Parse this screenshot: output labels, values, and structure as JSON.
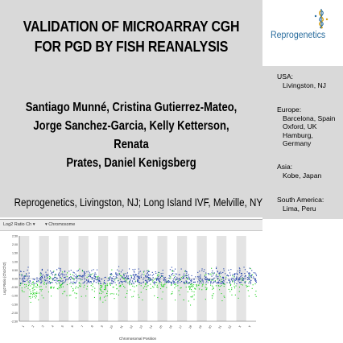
{
  "title_lines": [
    "VALIDATION OF MICROARRAY CGH",
    "FOR PGD BY FISH REANALYSIS"
  ],
  "author_lines": [
    "Santiago Munné, Cristina Gutierrez-Mateo,",
    "Jorge Sanchez-Garcia, Kelly Ketterson, Renata",
    "Prates, Daniel Kenigsberg"
  ],
  "affiliation": "Reprogenetics, Livingston, NJ; Long Island IVF, Melville, NY",
  "logo": {
    "text": "Reprogenetics",
    "icon": "logo-icon",
    "color": "#2a6d9e"
  },
  "locations": [
    {
      "region": "USA:",
      "cities": [
        "Livingston, NJ"
      ]
    },
    {
      "region": "Europe:",
      "cities": [
        "Barcelona, Spain",
        "Oxford, UK",
        "Hamburg, Germany"
      ]
    },
    {
      "region": "Asia:",
      "cities": [
        "Kobe, Japan"
      ]
    },
    {
      "region": "South America:",
      "cities": [
        "Lima, Peru"
      ]
    }
  ],
  "toolbar": {
    "ratio_label": "Log2 Ratio Ch",
    "chromosome_label": "Chromosome"
  },
  "chart_data": {
    "type": "scatter",
    "xlabel": "Chromosomal Position",
    "ylabel": "Log2 Ratio (Ch1/Ch2)",
    "ylim": [
      -2.5,
      2.5
    ],
    "yticks": [
      "2.50",
      "2.00",
      "1.50",
      "1.00",
      "0.50",
      "0.00",
      "-0.50",
      "-1.00",
      "-1.50",
      "-2.00",
      "-2.50"
    ],
    "chromosomes": [
      "1",
      "2",
      "3",
      "4",
      "5",
      "6",
      "7",
      "8",
      "9",
      "10",
      "11",
      "12",
      "13",
      "14",
      "15",
      "16",
      "17",
      "18",
      "19",
      "20",
      "21",
      "22",
      "X",
      "Y"
    ],
    "colors": {
      "point_blue": "#1f3fa8",
      "point_green": "#1fd21f",
      "band": "#e4e4e4",
      "axis": "#555555"
    }
  }
}
